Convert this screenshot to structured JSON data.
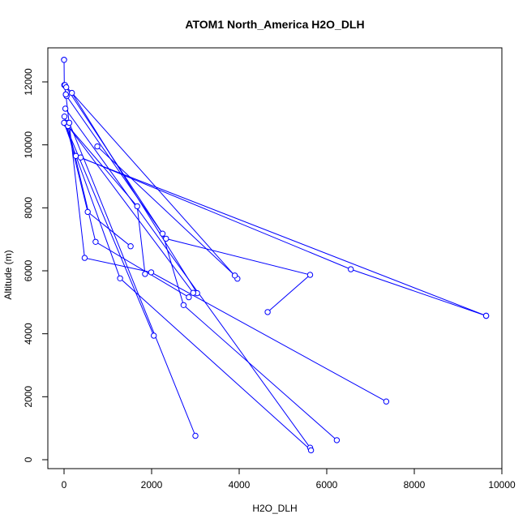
{
  "chart_data": {
    "type": "line",
    "title": "ATOM1 North_America H2O_DLH",
    "xlabel": "H2O_DLH",
    "ylabel": "Altitude (m)",
    "xlim": [
      0,
      10000
    ],
    "ylim": [
      0,
      12000
    ],
    "x_ticks": [
      0,
      2000,
      4000,
      6000,
      8000,
      10000
    ],
    "x_tick_labels": [
      "0",
      "2000",
      "4000",
      "6000",
      "8000",
      "10000"
    ],
    "y_ticks": [
      0,
      2000,
      4000,
      6000,
      8000,
      10000,
      12000
    ],
    "y_tick_labels": [
      "0",
      "2000",
      "4000",
      "6000",
      "8000",
      "10000",
      "12000"
    ],
    "grid": false,
    "color": "#0000ff",
    "marker": "open-circle",
    "series": [
      {
        "x": [
          0,
          0,
          5,
          40,
          60,
          2330,
          5620,
          4650
        ],
        "y": [
          12700,
          12700,
          11900,
          11600,
          11550,
          7020,
          5870,
          4690
        ]
      },
      {
        "x": [
          40,
          470,
          1990,
          7360
        ],
        "y": [
          11600,
          6410,
          5950,
          1850
        ]
      },
      {
        "x": [
          20,
          3960
        ],
        "y": [
          11900,
          5750
        ]
      },
      {
        "x": [
          30,
          5620
        ],
        "y": [
          11150,
          380
        ]
      },
      {
        "x": [
          50,
          2250,
          2730,
          6230
        ],
        "y": [
          11830,
          7180,
          4910,
          620
        ]
      },
      {
        "x": [
          180,
          3040
        ],
        "y": [
          11650,
          5290
        ]
      },
      {
        "x": [
          10,
          2050
        ],
        "y": [
          10700,
          3940
        ]
      },
      {
        "x": [
          10,
          540,
          1520
        ],
        "y": [
          10900,
          7870,
          6780
        ]
      },
      {
        "x": [
          60,
          1670,
          1850
        ],
        "y": [
          10650,
          8050,
          5900
        ]
      },
      {
        "x": [
          70,
          720,
          2850
        ],
        "y": [
          10700,
          6920,
          5160
        ]
      },
      {
        "x": [
          90,
          2950
        ],
        "y": [
          10600,
          5300
        ]
      },
      {
        "x": [
          0,
          1280,
          5640
        ],
        "y": [
          10700,
          5760,
          300
        ]
      },
      {
        "x": [
          120,
          3000
        ],
        "y": [
          10700,
          760
        ]
      },
      {
        "x": [
          270,
          9640
        ],
        "y": [
          9650,
          4570
        ]
      },
      {
        "x": [
          380,
          6550,
          9640
        ],
        "y": [
          9600,
          6050,
          4570
        ]
      },
      {
        "x": [
          760,
          3900
        ],
        "y": [
          9950,
          5850
        ]
      }
    ]
  }
}
